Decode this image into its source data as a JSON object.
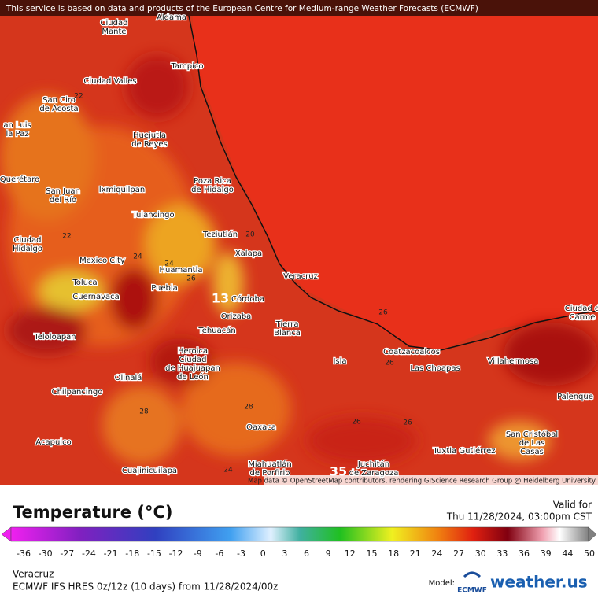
{
  "notice": "This service is based on data and products of the European Centre for Medium-range Weather Forecasts (ECMWF)",
  "map": {
    "cities": [
      [
        "Aldama"
      ],
      [
        "Ciudad",
        "Mante"
      ],
      [
        "Tampico"
      ],
      [
        "Ciudad Valles"
      ],
      [
        "San Ciro",
        "de Acosta"
      ],
      [
        "an Luis",
        "la Paz"
      ],
      [
        "Huejutla",
        "de Reyes"
      ],
      [
        "Poza Rica",
        "de Hidalgo"
      ],
      [
        "Querétaro"
      ],
      [
        "San Juan",
        "del Río"
      ],
      [
        "Ixmiquilpan"
      ],
      [
        "Tulancingo"
      ],
      [
        "Ciudad",
        "Hidalgo"
      ],
      [
        "Teziutlán"
      ],
      [
        "Mexico City"
      ],
      [
        "Xalapa"
      ],
      [
        "Huamantla"
      ],
      [
        "Veracruz"
      ],
      [
        "Toluca"
      ],
      [
        "Puebla"
      ],
      [
        "Cuernavaca"
      ],
      [
        "Córdoba"
      ],
      [
        "Orizaba"
      ],
      [
        "Tierra",
        "Blanca"
      ],
      [
        "Tehuacán"
      ],
      [
        "Ciudad d",
        "Carme"
      ],
      [
        "Teloloapan"
      ],
      [
        "Heroica",
        "Ciudad",
        "de Huajuapan",
        "de León"
      ],
      [
        "Coatzacoalcos"
      ],
      [
        "Isla"
      ],
      [
        "Villahermosa"
      ],
      [
        "Las Choapas"
      ],
      [
        "Olinalá"
      ],
      [
        "Chilpancingo"
      ],
      [
        "Palenque"
      ],
      [
        "Oaxaca"
      ],
      [
        "San Cristóbal",
        "de Las",
        "Casas"
      ],
      [
        "Acapulco"
      ],
      [
        "Tuxtla Gutiérrez"
      ],
      [
        "Cuajinicuilapa"
      ],
      [
        "Juchitán",
        "de Zaragoza"
      ],
      [
        "Miahuatlán",
        "de Porfirio"
      ]
    ],
    "contour_labels": [
      "22",
      "22",
      "24",
      "24",
      "20",
      "26",
      "13",
      "26",
      "26",
      "28",
      "28",
      "26",
      "26",
      "24",
      "35"
    ],
    "attribution": "Map data © OpenStreetMap contributors, rendering GIScience Research Group @ Heidelberg University"
  },
  "legend": {
    "title": "Temperature (°C)",
    "valid_label": "Valid for",
    "valid_time": "Thu 11/28/2024, 03:00pm CST",
    "ticks": [
      -36,
      -30,
      -27,
      -24,
      -21,
      -18,
      -15,
      -12,
      -9,
      -6,
      -3,
      0,
      3,
      6,
      9,
      12,
      15,
      18,
      21,
      24,
      27,
      30,
      33,
      36,
      39,
      44,
      50
    ]
  },
  "footer": {
    "location": "Veracruz",
    "model_run": "ECMWF IFS HRES 0z/12z (10 days) from  11/28/2024/00z",
    "model_label": "Model:",
    "model_logo": "ECMWF",
    "brand": "weather.us"
  }
}
